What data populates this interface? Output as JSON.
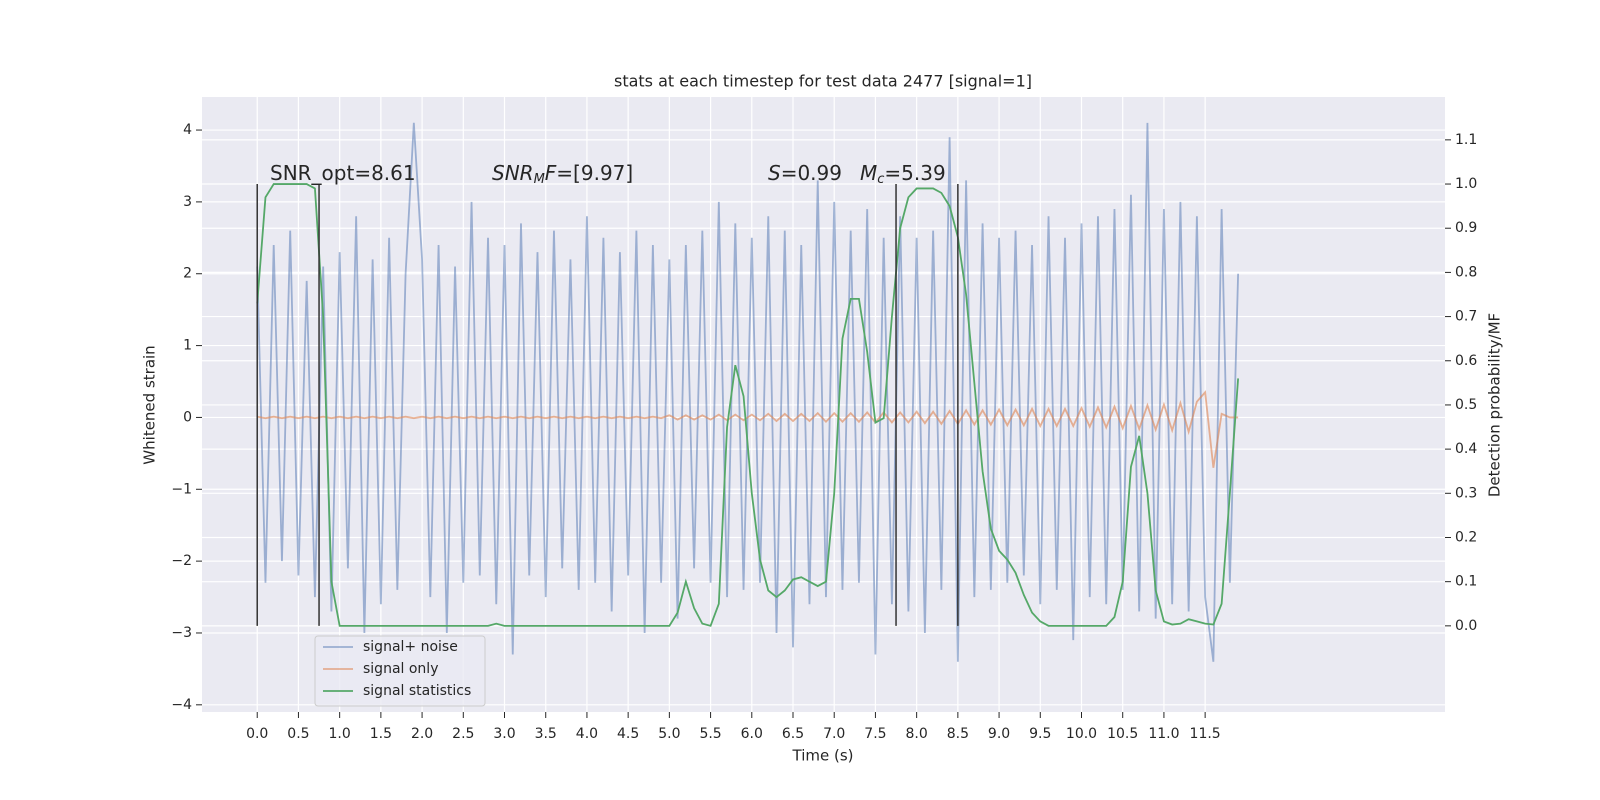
{
  "chart_data": {
    "type": "line",
    "title": "stats at each timestep for test data 2477 [signal=1]",
    "xlabel": "Time (s)",
    "ylabel": "Whitened strain",
    "y2label": "Detection probability/MF",
    "x": [
      0,
      0.1,
      0.2,
      0.3,
      0.4,
      0.5,
      0.6,
      0.7,
      0.8,
      0.9,
      1,
      1.1,
      1.2,
      1.3,
      1.4,
      1.5,
      1.6,
      1.7,
      1.8,
      1.9,
      2,
      2.1,
      2.2,
      2.3,
      2.4,
      2.5,
      2.6,
      2.7,
      2.8,
      2.9,
      3,
      3.1,
      3.2,
      3.3,
      3.4,
      3.5,
      3.6,
      3.7,
      3.8,
      3.9,
      4,
      4.1,
      4.2,
      4.3,
      4.4,
      4.5,
      4.6,
      4.7,
      4.8,
      4.9,
      5,
      5.1,
      5.2,
      5.3,
      5.4,
      5.5,
      5.6,
      5.7,
      5.8,
      5.9,
      6,
      6.1,
      6.2,
      6.3,
      6.4,
      6.5,
      6.6,
      6.7,
      6.8,
      6.9,
      7,
      7.1,
      7.2,
      7.3,
      7.4,
      7.5,
      7.6,
      7.7,
      7.8,
      7.9,
      8,
      8.1,
      8.2,
      8.3,
      8.4,
      8.5,
      8.6,
      8.7,
      8.8,
      8.9,
      9,
      9.1,
      9.2,
      9.3,
      9.4,
      9.5,
      9.6,
      9.7,
      9.8,
      9.9,
      10,
      10.1,
      10.2,
      10.3,
      10.4,
      10.5,
      10.6,
      10.7,
      10.8,
      10.9,
      11,
      11.1,
      11.2,
      11.3,
      11.4,
      11.5,
      11.6,
      11.7,
      11.8,
      11.9
    ],
    "series": [
      {
        "name": "signal+ noise",
        "color": "#4c72b0",
        "alpha": 0.5,
        "values": [
          2.1,
          -2.3,
          2.4,
          -2.0,
          2.6,
          -2.2,
          1.9,
          -2.5,
          2.1,
          -2.7,
          2.3,
          -2.1,
          2.8,
          -3.0,
          2.2,
          -2.6,
          2.5,
          -2.4,
          2.0,
          4.1,
          2.2,
          -2.5,
          2.4,
          -3.0,
          2.1,
          -2.3,
          3.0,
          -2.2,
          2.5,
          -2.6,
          2.4,
          -3.3,
          2.7,
          -2.2,
          2.3,
          -2.5,
          2.6,
          -2.1,
          2.2,
          -2.4,
          2.8,
          -2.3,
          2.5,
          -2.7,
          2.3,
          -2.2,
          2.6,
          -3.0,
          2.4,
          -2.3,
          2.2,
          -2.8,
          2.4,
          -2.1,
          2.6,
          -2.3,
          3.0,
          -2.5,
          2.7,
          -2.4,
          2.5,
          -2.3,
          2.8,
          -3.0,
          2.6,
          -3.2,
          2.4,
          -2.6,
          3.3,
          -2.5,
          3.0,
          -2.4,
          2.6,
          -2.3,
          2.9,
          -3.3,
          2.5,
          -2.6,
          2.8,
          -2.7,
          2.5,
          -3.0,
          2.6,
          -2.4,
          3.9,
          -3.4,
          3.3,
          -2.5,
          2.7,
          -2.4,
          2.5,
          -2.3,
          2.6,
          -2.2,
          2.4,
          -2.6,
          2.8,
          -2.4,
          2.5,
          -3.1,
          2.7,
          -2.5,
          2.8,
          -2.6,
          2.9,
          -2.4,
          3.1,
          -2.7,
          4.1,
          -2.8,
          2.9,
          -2.6,
          3.0,
          -2.7,
          2.8,
          -2.5,
          -3.4,
          2.9,
          -2.3,
          2.0
        ]
      },
      {
        "name": "signal only",
        "color": "#dd8452",
        "alpha": 0.6,
        "values": [
          0.01,
          -0.01,
          0.01,
          -0.01,
          0.01,
          -0.01,
          0.01,
          -0.01,
          0.01,
          -0.01,
          0.01,
          -0.01,
          0.01,
          -0.01,
          0.01,
          -0.01,
          0.01,
          -0.01,
          0.01,
          -0.01,
          0.01,
          -0.01,
          0.01,
          -0.01,
          0.01,
          -0.01,
          0.01,
          -0.01,
          0.01,
          -0.01,
          0.01,
          -0.01,
          0.01,
          -0.01,
          0.01,
          -0.01,
          0.01,
          -0.01,
          0.01,
          -0.01,
          0.01,
          -0.01,
          0.01,
          -0.01,
          0.01,
          -0.01,
          0.01,
          -0.01,
          0.01,
          -0.01,
          0.03,
          -0.03,
          0.03,
          -0.03,
          0.03,
          -0.03,
          0.04,
          -0.04,
          0.04,
          -0.04,
          0.04,
          -0.04,
          0.05,
          -0.05,
          0.05,
          -0.05,
          0.05,
          -0.05,
          0.06,
          -0.06,
          0.06,
          -0.06,
          0.06,
          -0.06,
          0.07,
          -0.07,
          0.07,
          -0.07,
          0.07,
          -0.07,
          0.08,
          -0.08,
          0.08,
          -0.09,
          0.09,
          -0.09,
          0.1,
          -0.1,
          0.1,
          -0.1,
          0.11,
          -0.11,
          0.11,
          -0.11,
          0.12,
          -0.12,
          0.12,
          -0.12,
          0.12,
          -0.12,
          0.13,
          -0.13,
          0.14,
          -0.14,
          0.15,
          -0.15,
          0.16,
          -0.16,
          0.17,
          -0.17,
          0.18,
          -0.18,
          0.2,
          -0.2,
          0.22,
          0.35,
          -0.7,
          0.05,
          0,
          0
        ]
      },
      {
        "name": "signal statistics",
        "color": "#55a868",
        "alpha": 1,
        "axis": "y2",
        "values": [
          0.73,
          0.97,
          1.0,
          1.0,
          1.0,
          1.0,
          1.0,
          0.99,
          0.7,
          0.1,
          0.0,
          0.0,
          0.0,
          0.0,
          0.0,
          0.0,
          0.0,
          0.0,
          0.0,
          0.0,
          0.0,
          0.0,
          0.0,
          0.0,
          0.0,
          0.0,
          0.0,
          0.0,
          0.0,
          0.005,
          0.0,
          0.0,
          0.0,
          0.0,
          0.0,
          0.0,
          0.0,
          0.0,
          0.0,
          0.0,
          0.0,
          0.0,
          0.0,
          0.0,
          0.0,
          0.0,
          0.0,
          0.0,
          0.0,
          0.0,
          0.0,
          0.03,
          0.1,
          0.04,
          0.005,
          0.0,
          0.05,
          0.45,
          0.59,
          0.52,
          0.3,
          0.15,
          0.08,
          0.065,
          0.08,
          0.105,
          0.11,
          0.1,
          0.09,
          0.1,
          0.3,
          0.65,
          0.74,
          0.74,
          0.62,
          0.46,
          0.47,
          0.7,
          0.9,
          0.97,
          0.99,
          0.99,
          0.99,
          0.98,
          0.95,
          0.88,
          0.75,
          0.55,
          0.35,
          0.22,
          0.17,
          0.15,
          0.12,
          0.07,
          0.03,
          0.01,
          0.0,
          0.0,
          0.0,
          0.0,
          0.0,
          0.0,
          0.0,
          0.0,
          0.02,
          0.1,
          0.36,
          0.43,
          0.3,
          0.08,
          0.01,
          0.003,
          0.005,
          0.015,
          0.01,
          0.005,
          0.003,
          0.05,
          0.3,
          0.56
        ]
      }
    ],
    "vlines": {
      "x": [
        0,
        0.75,
        7.75,
        8.5
      ],
      "ymin": 0,
      "ymax": 1.0,
      "color": "#333333"
    },
    "annotations": [
      {
        "parts": [
          {
            "text": "SNR_opt=8.61"
          }
        ]
      },
      {
        "parts": [
          {
            "text": "SNR",
            "style": "italic"
          },
          {
            "text": "M",
            "style": "sub"
          },
          {
            "text": "F",
            "style": "italic"
          },
          {
            "text": "=[9.97]"
          }
        ]
      },
      {
        "parts": [
          {
            "text": "S",
            "style": "italic"
          },
          {
            "text": "=0.99"
          }
        ]
      },
      {
        "parts": [
          {
            "text": "M",
            "style": "italic"
          },
          {
            "text": "c",
            "style": "sub"
          },
          {
            "text": "=5.39"
          }
        ]
      }
    ],
    "xlim": [
      -0.67,
      14.41
    ],
    "ylim": [
      -4.1,
      4.46
    ],
    "y2lim": [
      -0.195,
      1.197
    ],
    "xticks": [
      {
        "value": 0,
        "label": "0.0"
      },
      {
        "value": 0.5,
        "label": "0.5"
      },
      {
        "value": 1,
        "label": "1.0"
      },
      {
        "value": 1.5,
        "label": "1.5"
      },
      {
        "value": 2,
        "label": "2.0"
      },
      {
        "value": 2.5,
        "label": "2.5"
      },
      {
        "value": 3,
        "label": "3.0"
      },
      {
        "value": 3.5,
        "label": "3.5"
      },
      {
        "value": 4,
        "label": "4.0"
      },
      {
        "value": 4.5,
        "label": "4.5"
      },
      {
        "value": 5,
        "label": "5.0"
      },
      {
        "value": 5.5,
        "label": "5.5"
      },
      {
        "value": 6,
        "label": "6.0"
      },
      {
        "value": 6.5,
        "label": "6.5"
      },
      {
        "value": 7,
        "label": "7.0"
      },
      {
        "value": 7.5,
        "label": "7.5"
      },
      {
        "value": 8,
        "label": "8.0"
      },
      {
        "value": 8.5,
        "label": "8.5"
      },
      {
        "value": 9,
        "label": "9.0"
      },
      {
        "value": 9.5,
        "label": "9.5"
      },
      {
        "value": 10,
        "label": "10.0"
      },
      {
        "value": 10.5,
        "label": "10.5"
      },
      {
        "value": 11,
        "label": "11.0"
      },
      {
        "value": 11.5,
        "label": "11.5"
      }
    ],
    "yticks": [
      {
        "value": -4,
        "label": "−4"
      },
      {
        "value": -3,
        "label": "−3"
      },
      {
        "value": -2,
        "label": "−2"
      },
      {
        "value": -1,
        "label": "−1"
      },
      0,
      1,
      2,
      3,
      4
    ],
    "y2ticks": [
      {
        "value": 0,
        "label": "0.0"
      },
      {
        "value": 0.1,
        "label": "0.1"
      },
      {
        "value": 0.2,
        "label": "0.2"
      },
      {
        "value": 0.3,
        "label": "0.3"
      },
      {
        "value": 0.4,
        "label": "0.4"
      },
      {
        "value": 0.5,
        "label": "0.5"
      },
      {
        "value": 0.6,
        "label": "0.6"
      },
      {
        "value": 0.7,
        "label": "0.7"
      },
      {
        "value": 0.8,
        "label": "0.8"
      },
      {
        "value": 0.9,
        "label": "0.9"
      },
      {
        "value": 1,
        "label": "1.0"
      },
      {
        "value": 1.1,
        "label": "1.1"
      }
    ],
    "grid": true,
    "legend": "lower left"
  }
}
